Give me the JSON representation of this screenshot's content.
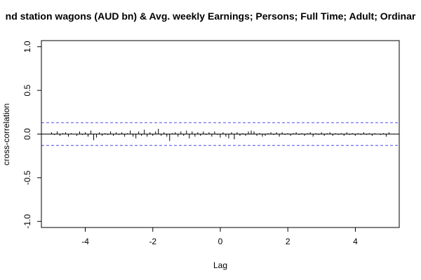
{
  "chart_data": {
    "type": "bar",
    "title": "nd station wagons (AUD bn) & Avg. weekly Earnings; Persons; Full Time; Adult; Ordinar",
    "xlabel": "Lag",
    "ylabel": "cross-correlation",
    "xlim": [
      -5.3,
      5.3
    ],
    "ylim": [
      -1.07,
      1.07
    ],
    "x_ticks": [
      -4,
      -2,
      0,
      2,
      4
    ],
    "x_tick_labels": [
      "-4",
      "-2",
      "0",
      "2",
      "4"
    ],
    "y_ticks": [
      -1.0,
      -0.5,
      0.0,
      0.5,
      1.0
    ],
    "y_tick_labels": [
      "-1.0",
      "-0.5",
      "0.0",
      "0.5",
      "1.0"
    ],
    "confidence_bound": 0.13,
    "bound_color": "#4a4ae6",
    "bar_color": "#000000",
    "lag_start": -5.0,
    "lag_step": 0.0833,
    "values": [
      0.02,
      -0.01,
      0.03,
      -0.02,
      0.01,
      0.02,
      -0.03,
      0.01,
      0.0,
      -0.02,
      0.03,
      -0.01,
      0.02,
      -0.03,
      0.04,
      -0.07,
      -0.04,
      0.02,
      -0.02,
      0.01,
      -0.01,
      0.03,
      -0.02,
      0.02,
      -0.01,
      0.02,
      -0.03,
      0.01,
      0.04,
      -0.03,
      -0.05,
      0.03,
      -0.02,
      0.05,
      -0.03,
      0.02,
      -0.02,
      0.03,
      0.06,
      -0.02,
      0.02,
      -0.03,
      -0.08,
      0.01,
      0.02,
      -0.03,
      0.03,
      -0.02,
      0.04,
      -0.05,
      0.03,
      -0.03,
      0.02,
      -0.02,
      0.03,
      -0.01,
      0.02,
      -0.03,
      0.03,
      -0.01,
      -0.04,
      0.02,
      -0.03,
      -0.05,
      0.02,
      -0.06,
      0.02,
      -0.02,
      0.01,
      -0.02,
      0.03,
      0.04,
      0.03,
      -0.02,
      0.01,
      -0.03,
      -0.02,
      0.01,
      0.02,
      -0.01,
      0.02,
      -0.03,
      0.02,
      -0.01,
      0.01,
      -0.02,
      0.01,
      0.02,
      -0.01,
      0.01,
      -0.02,
      0.01,
      0.02,
      -0.03,
      0.01,
      -0.01,
      0.02,
      -0.02,
      0.01,
      0.02,
      -0.02,
      0.01,
      -0.01,
      0.01,
      -0.02,
      0.02,
      -0.01,
      0.01,
      -0.02,
      0.01,
      -0.01,
      0.02,
      -0.01,
      0.01,
      -0.02,
      0.01,
      0.0,
      -0.01,
      0.01,
      -0.03,
      0.02
    ]
  }
}
